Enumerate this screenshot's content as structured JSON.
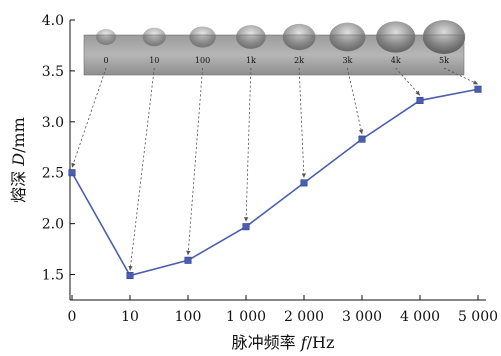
{
  "chart_data": {
    "type": "line",
    "x_tick_labels": [
      "0",
      "10",
      "100",
      "1 000",
      "2 000",
      "3 000",
      "4 000",
      "5 000"
    ],
    "values": [
      2.5,
      1.49,
      1.64,
      1.97,
      2.4,
      2.83,
      3.21,
      3.32
    ],
    "y_ticks": [
      "1.5",
      "2.0",
      "2.5",
      "3.0",
      "3.5",
      "4.0"
    ],
    "ylim": [
      1.25,
      4.0
    ],
    "xlabel_prefix": "脉冲频率 ",
    "xlabel_var": "f",
    "xlabel_unit": "/Hz",
    "ylabel_prefix": "熔深 ",
    "ylabel_var": "D",
    "ylabel_unit": "/mm",
    "grid": false,
    "series_color": "#4a5fae",
    "inset": {
      "description_type": "photo-strip",
      "labels": [
        "0",
        "10",
        "100",
        "1k",
        "2k",
        "3k",
        "4k",
        "5k"
      ]
    }
  }
}
